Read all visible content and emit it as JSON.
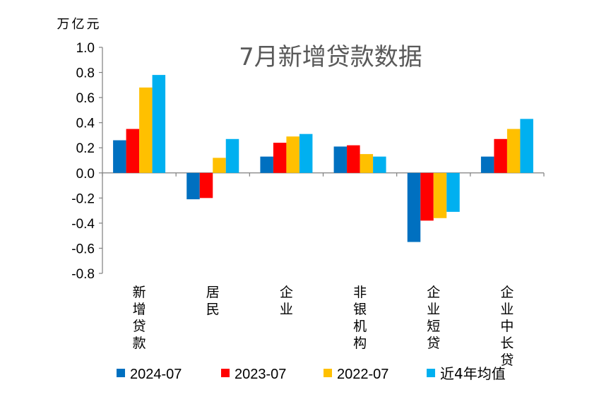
{
  "chart_data": {
    "type": "bar",
    "title": "7月新增贷款数据",
    "unit_label": "万亿元",
    "ylim": [
      -0.8,
      1.0
    ],
    "yticks": [
      "1.0",
      "0.8",
      "0.6",
      "0.4",
      "0.2",
      "0.0",
      "-0.2",
      "-0.4",
      "-0.6",
      "-0.8"
    ],
    "categories": [
      "新增贷款",
      "居民",
      "企业",
      "非银机构",
      "企业短贷",
      "企业中长贷"
    ],
    "series": [
      {
        "name": "2024-07",
        "color": "#0070C0",
        "values": [
          0.26,
          -0.21,
          0.13,
          0.21,
          -0.55,
          0.13
        ]
      },
      {
        "name": "2023-07",
        "color": "#FF0000",
        "values": [
          0.35,
          -0.2,
          0.24,
          0.22,
          -0.38,
          0.27
        ]
      },
      {
        "name": "2022-07",
        "color": "#FFC000",
        "values": [
          0.68,
          0.12,
          0.29,
          0.15,
          -0.36,
          0.35
        ]
      },
      {
        "name": "近4年均值",
        "color": "#00B0F0",
        "values": [
          0.78,
          0.27,
          0.31,
          0.13,
          -0.31,
          0.43
        ]
      }
    ],
    "grid": false,
    "legend_position": "bottom"
  }
}
